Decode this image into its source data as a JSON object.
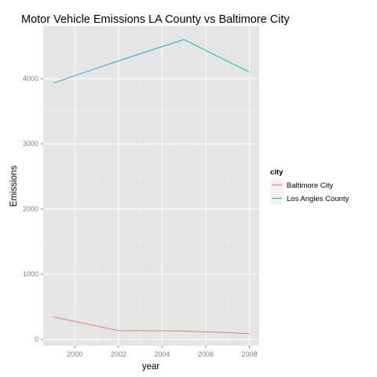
{
  "chart_data": {
    "type": "line",
    "title": "Motor Vehicle Emissions LA County vs Baltimore City",
    "xlabel": "year",
    "ylabel": "Emissions",
    "x": [
      1999,
      2002,
      2005,
      2008
    ],
    "xlim": [
      1998.55,
      2008.45
    ],
    "ylim": [
      -95,
      4810
    ],
    "xticks": [
      2000,
      2002,
      2004,
      2006,
      2008
    ],
    "yticks": [
      0,
      1000,
      2000,
      3000,
      4000
    ],
    "grid": true,
    "legend": {
      "title": "city",
      "position": "right"
    },
    "series": [
      {
        "name": "Baltimore City",
        "color": "#F8766D",
        "values": [
          347,
          134,
          130,
          89
        ]
      },
      {
        "name": "Los Angles County",
        "color": "#00BFC4",
        "values": [
          3931,
          4274,
          4601,
          4101
        ]
      }
    ]
  }
}
